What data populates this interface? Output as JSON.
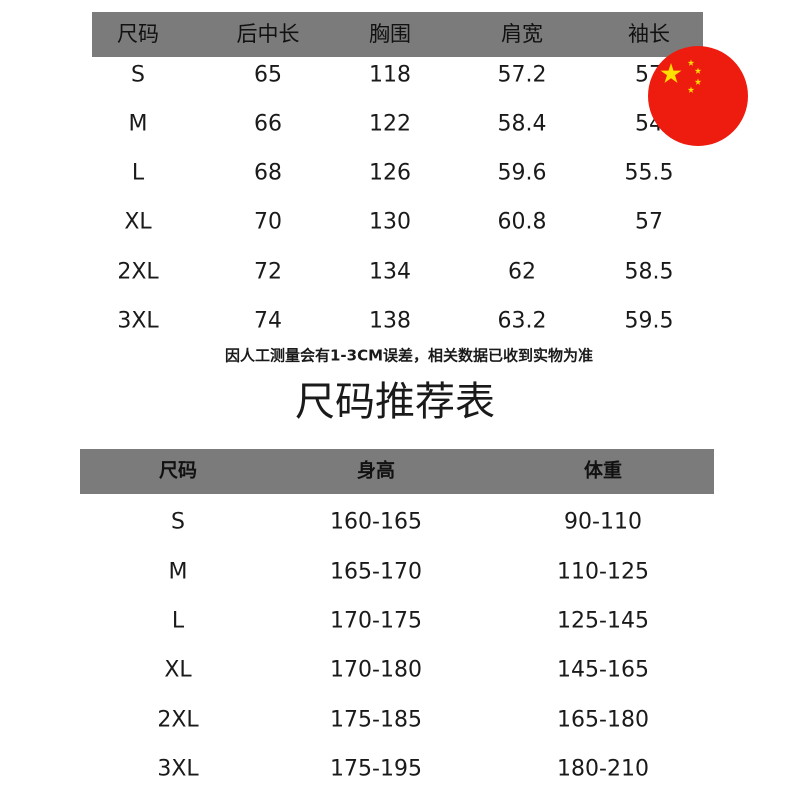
{
  "measure_table": {
    "headers": [
      "尺码",
      "后中长",
      "胸围",
      "肩宽",
      "袖长"
    ],
    "rows": [
      [
        "S",
        "65",
        "118",
        "57.2",
        "57"
      ],
      [
        "M",
        "66",
        "122",
        "58.4",
        "54"
      ],
      [
        "L",
        "68",
        "126",
        "59.6",
        "55.5"
      ],
      [
        "XL",
        "70",
        "130",
        "60.8",
        "57"
      ],
      [
        "2XL",
        "72",
        "134",
        "62",
        "58.5"
      ],
      [
        "3XL",
        "74",
        "138",
        "63.2",
        "59.5"
      ]
    ]
  },
  "note": "因人工测量会有1-3CM误差，相关数据已收到实物为准",
  "title": "尺码推荐表",
  "recommend_table": {
    "headers": [
      "尺码",
      "身高",
      "体重"
    ],
    "rows": [
      [
        "S",
        "160-165",
        "90-110"
      ],
      [
        "M",
        "165-170",
        "110-125"
      ],
      [
        "L",
        "170-175",
        "125-145"
      ],
      [
        "XL",
        "170-180",
        "145-165"
      ],
      [
        "2XL",
        "175-185",
        "165-180"
      ],
      [
        "3XL",
        "175-195",
        "180-210"
      ]
    ]
  },
  "colors": {
    "header": "#7b7b7b",
    "flag_red": "#ee1c0f",
    "flag_star": "#ffde00"
  },
  "icons": {
    "flag": "china-flag-icon"
  }
}
